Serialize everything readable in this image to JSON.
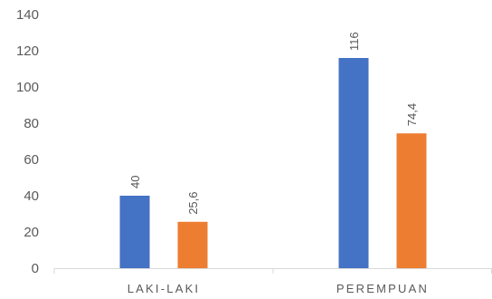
{
  "chart_data": {
    "type": "bar",
    "categories": [
      "LAKI-LAKI",
      "PEREMPUAN"
    ],
    "series": [
      {
        "values": [
          40,
          116
        ],
        "data_labels": [
          "40",
          "116"
        ],
        "color": "#4472C4"
      },
      {
        "values": [
          25.6,
          74.4
        ],
        "data_labels": [
          "25,6",
          "74,4"
        ],
        "color": "#ED7D31"
      }
    ],
    "y_ticks": [
      0,
      20,
      40,
      60,
      80,
      100,
      120,
      140
    ],
    "y_tick_labels": [
      "0",
      "20",
      "40",
      "60",
      "80",
      "100",
      "120",
      "140"
    ],
    "ylim": [
      0,
      140
    ],
    "grid": false,
    "legend": "none",
    "title": "",
    "xlabel": "",
    "ylabel": "",
    "axis_color": "#D9D9D9",
    "text_color": "#595959"
  }
}
